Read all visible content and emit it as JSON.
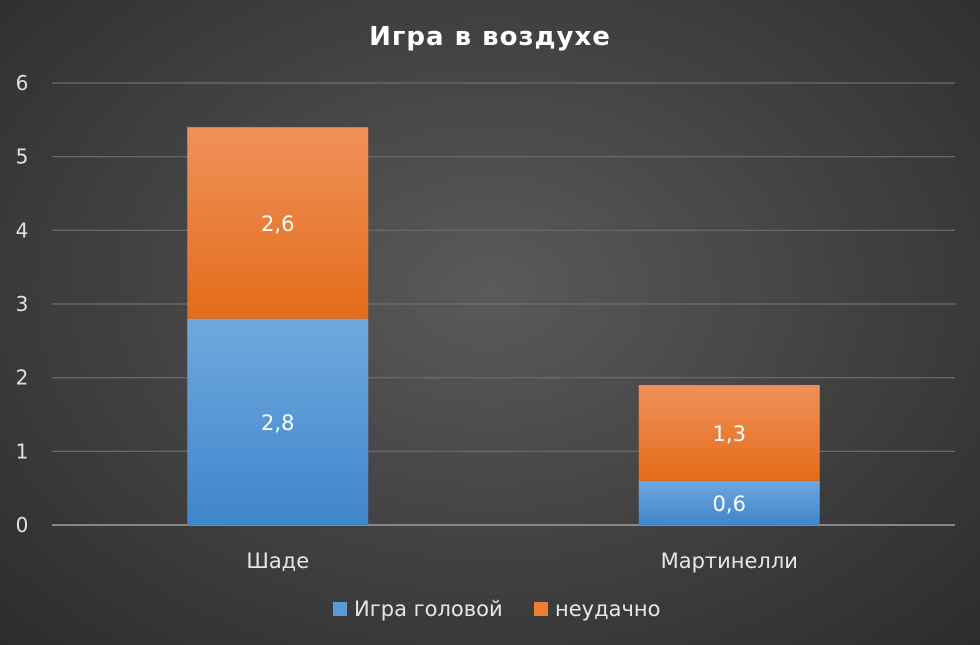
{
  "chart_data": {
    "type": "bar",
    "stacked": true,
    "title": "Игра в воздухе",
    "categories": [
      "Шаде",
      "Мартинелли"
    ],
    "series": [
      {
        "name": "Игра головой",
        "values": [
          2.8,
          0.6
        ],
        "labels": [
          "2,8",
          "0,6"
        ],
        "color": "#5b9bd5"
      },
      {
        "name": "неудачно",
        "values": [
          2.6,
          1.3
        ],
        "labels": [
          "2,6",
          "1,3"
        ],
        "color": "#ed7d31"
      }
    ],
    "ylim": [
      0,
      6
    ],
    "yticks": [
      "0",
      "1",
      "2",
      "3",
      "4",
      "5",
      "6"
    ],
    "grid": true,
    "legend_position": "bottom"
  }
}
